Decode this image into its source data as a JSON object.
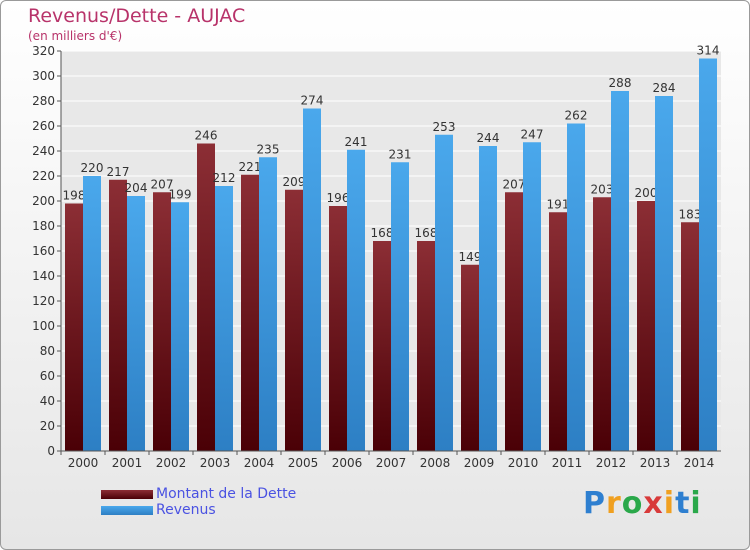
{
  "header": {
    "title": "Revenus/Dette - AUJAC",
    "subtitle": "(en milliers d'€)"
  },
  "chart_data": {
    "type": "bar",
    "title": "Revenus/Dette - AUJAC",
    "subtitle": "(en milliers d'€)",
    "categories": [
      "2000",
      "2001",
      "2002",
      "2003",
      "2004",
      "2005",
      "2006",
      "2007",
      "2008",
      "2009",
      "2010",
      "2011",
      "2012",
      "2013",
      "2014"
    ],
    "series": [
      {
        "name": "Montant de la Dette",
        "values": [
          198,
          217,
          207,
          246,
          221,
          209,
          196,
          168,
          168,
          149,
          207,
          191,
          203,
          200,
          183
        ],
        "color": "#7a1f24"
      },
      {
        "name": "Revenus",
        "values": [
          220,
          204,
          199,
          212,
          235,
          274,
          241,
          231,
          253,
          244,
          247,
          262,
          288,
          284,
          314
        ],
        "color": "#3d9ee2"
      }
    ],
    "ylim": [
      0,
      320
    ],
    "yticks": [
      0,
      20,
      40,
      60,
      80,
      100,
      120,
      140,
      160,
      180,
      200,
      220,
      240,
      260,
      280,
      300,
      320
    ],
    "grid": true,
    "legend_position": "bottom-left"
  },
  "legend": {
    "items": [
      {
        "label": "Montant de la Dette"
      },
      {
        "label": "Revenus"
      }
    ]
  },
  "logo": {
    "text": "Proxiti",
    "letters": [
      "P",
      "r",
      "o",
      "x",
      "i",
      "t",
      "i"
    ],
    "colors": [
      "#2e7fd0",
      "#f0a020",
      "#2aa84a",
      "#d83a3a",
      "#f0a020",
      "#2e7fd0",
      "#2aa84a"
    ]
  }
}
